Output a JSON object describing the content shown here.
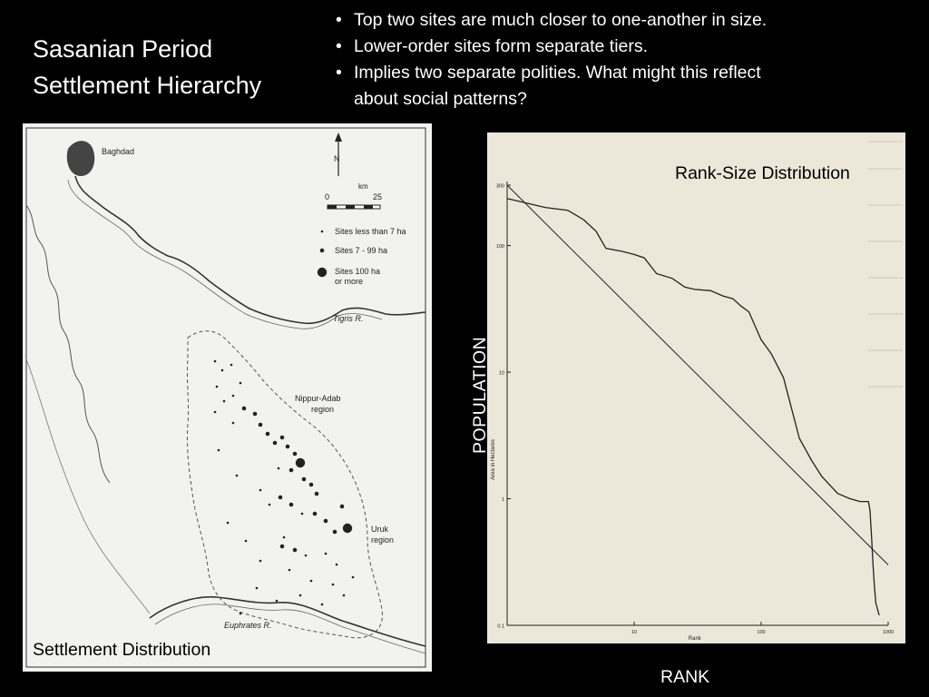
{
  "slide": {
    "title": "Sasanian Period\nSettlement Hierarchy",
    "bullets": [
      "Top two sites are much closer to one-another in size.",
      "Lower-order sites form separate tiers.",
      "Implies two separate polities. What might this reflect\n about social patterns?"
    ]
  },
  "map": {
    "caption": "Settlement Distribution",
    "labels": {
      "baghdad": "Baghdad",
      "north": "N",
      "km": "km",
      "scale_zero": "0",
      "scale_end": "25",
      "tigris": "Tigris R.",
      "euphrates": "Euphrates R.",
      "nippur_line1": "Nippur-Adab",
      "nippur_line2": "region",
      "uruk_line1": "Uruk",
      "uruk_line2": "region"
    },
    "legend": {
      "small": "Sites less than 7 ha",
      "medium": "Sites 7 - 99 ha",
      "large_line1": "Sites 100 ha",
      "large_line2": "or more"
    }
  },
  "chart": {
    "title": "Rank-Size Distribution",
    "ylabel_outer": "POPULATION",
    "xlabel_outer": "RANK",
    "ylabel_inner": "Area in Hectares",
    "xlabel_inner": "Rank",
    "ytick_labels": [
      "300",
      "100",
      "10",
      "1",
      "0.1"
    ],
    "xtick_labels": [
      "10",
      "100",
      "1000"
    ]
  },
  "chart_data": {
    "type": "line",
    "title": "Rank-Size Distribution",
    "xlabel": "Rank",
    "ylabel": "Area in Hectares",
    "xscale": "log",
    "yscale": "log",
    "xlim": [
      1,
      1000
    ],
    "ylim": [
      0.1,
      300
    ],
    "series": [
      {
        "name": "",
        "x": [
          1,
          2,
          3,
          4,
          5,
          6,
          8,
          10,
          12,
          15,
          20,
          25,
          30,
          40,
          50,
          60,
          70,
          80,
          100,
          120,
          150,
          200,
          250,
          300,
          400,
          500,
          600,
          700,
          720,
          740,
          760,
          780,
          800,
          850
        ],
        "y": [
          235,
          200,
          190,
          160,
          130,
          95,
          90,
          85,
          80,
          60,
          55,
          47,
          45,
          44,
          40,
          38,
          33,
          30,
          18,
          14,
          9,
          3,
          2,
          1.5,
          1.1,
          1.0,
          0.95,
          0.95,
          0.8,
          0.5,
          0.3,
          0.2,
          0.15,
          0.12
        ]
      },
      {
        "name": "",
        "x": [
          1,
          1000
        ],
        "y": [
          300,
          0.3
        ]
      }
    ]
  }
}
